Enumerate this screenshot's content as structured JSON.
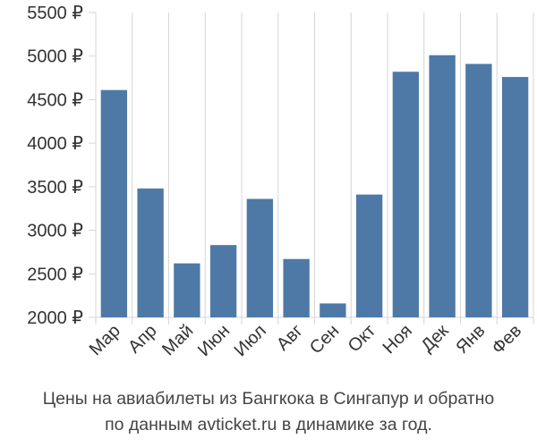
{
  "chart_data": {
    "type": "bar",
    "categories": [
      "Мар",
      "Апр",
      "Май",
      "Июн",
      "Июл",
      "Авг",
      "Сен",
      "Окт",
      "Ноя",
      "Дек",
      "Янв",
      "Фев"
    ],
    "series": [
      {
        "values": [
          4610,
          3480,
          2620,
          2830,
          3360,
          2670,
          2160,
          3410,
          4820,
          5010,
          4910,
          4760
        ]
      }
    ],
    "y_ticks": [
      "2000 ₽",
      "2500 ₽",
      "3000 ₽",
      "3500 ₽",
      "4000 ₽",
      "4500 ₽",
      "5000 ₽",
      "5500 ₽"
    ],
    "y_tick_values": [
      2000,
      2500,
      3000,
      3500,
      4000,
      4500,
      5000,
      5500
    ],
    "ylim": [
      2000,
      5500
    ],
    "title": "",
    "xlabel": "",
    "ylabel": "",
    "grid": "vertical",
    "legend": "none",
    "bar_color": "#4e79a7",
    "grid_color": "#d6d6d6"
  },
  "caption": {
    "line1": "Цены на авиабилеты из Бангкока в Сингапур и обратно",
    "line2": "по данным avticket.ru в динамике за год."
  }
}
